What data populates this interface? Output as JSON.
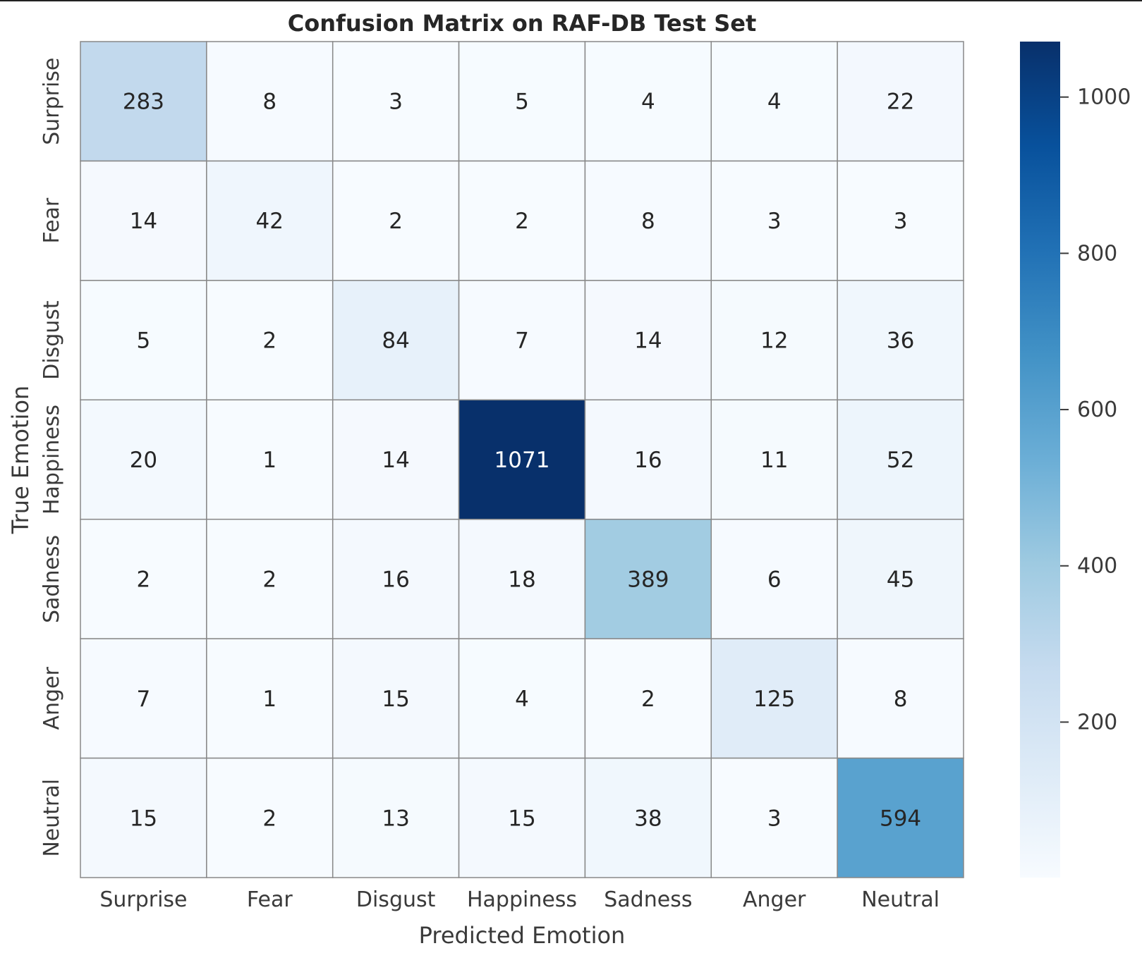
{
  "chart_data": {
    "type": "heatmap",
    "title": "Confusion Matrix on RAF-DB Test Set",
    "xlabel": "Predicted Emotion",
    "ylabel": "True Emotion",
    "x_categories": [
      "Surprise",
      "Fear",
      "Disgust",
      "Happiness",
      "Sadness",
      "Anger",
      "Neutral"
    ],
    "y_categories": [
      "Surprise",
      "Fear",
      "Disgust",
      "Happiness",
      "Sadness",
      "Anger",
      "Neutral"
    ],
    "values": [
      [
        283,
        8,
        3,
        5,
        4,
        4,
        22
      ],
      [
        14,
        42,
        2,
        2,
        8,
        3,
        3
      ],
      [
        5,
        2,
        84,
        7,
        14,
        12,
        36
      ],
      [
        20,
        1,
        14,
        1071,
        16,
        11,
        52
      ],
      [
        2,
        2,
        16,
        18,
        389,
        6,
        45
      ],
      [
        7,
        1,
        15,
        4,
        2,
        125,
        8
      ],
      [
        15,
        2,
        13,
        15,
        38,
        3,
        594
      ]
    ],
    "colormap": "Blues",
    "colormap_stops": [
      "#f7fbff",
      "#deebf7",
      "#c6dbef",
      "#9ecae1",
      "#6baed6",
      "#4292c6",
      "#2171b5",
      "#08519c",
      "#08306b"
    ],
    "colorbar": {
      "range": [
        1,
        1071
      ],
      "ticks": [
        200,
        400,
        600,
        800,
        1000
      ],
      "tick_labels": [
        "200",
        "400",
        "600",
        "800",
        "1000"
      ]
    },
    "annotations": true
  }
}
